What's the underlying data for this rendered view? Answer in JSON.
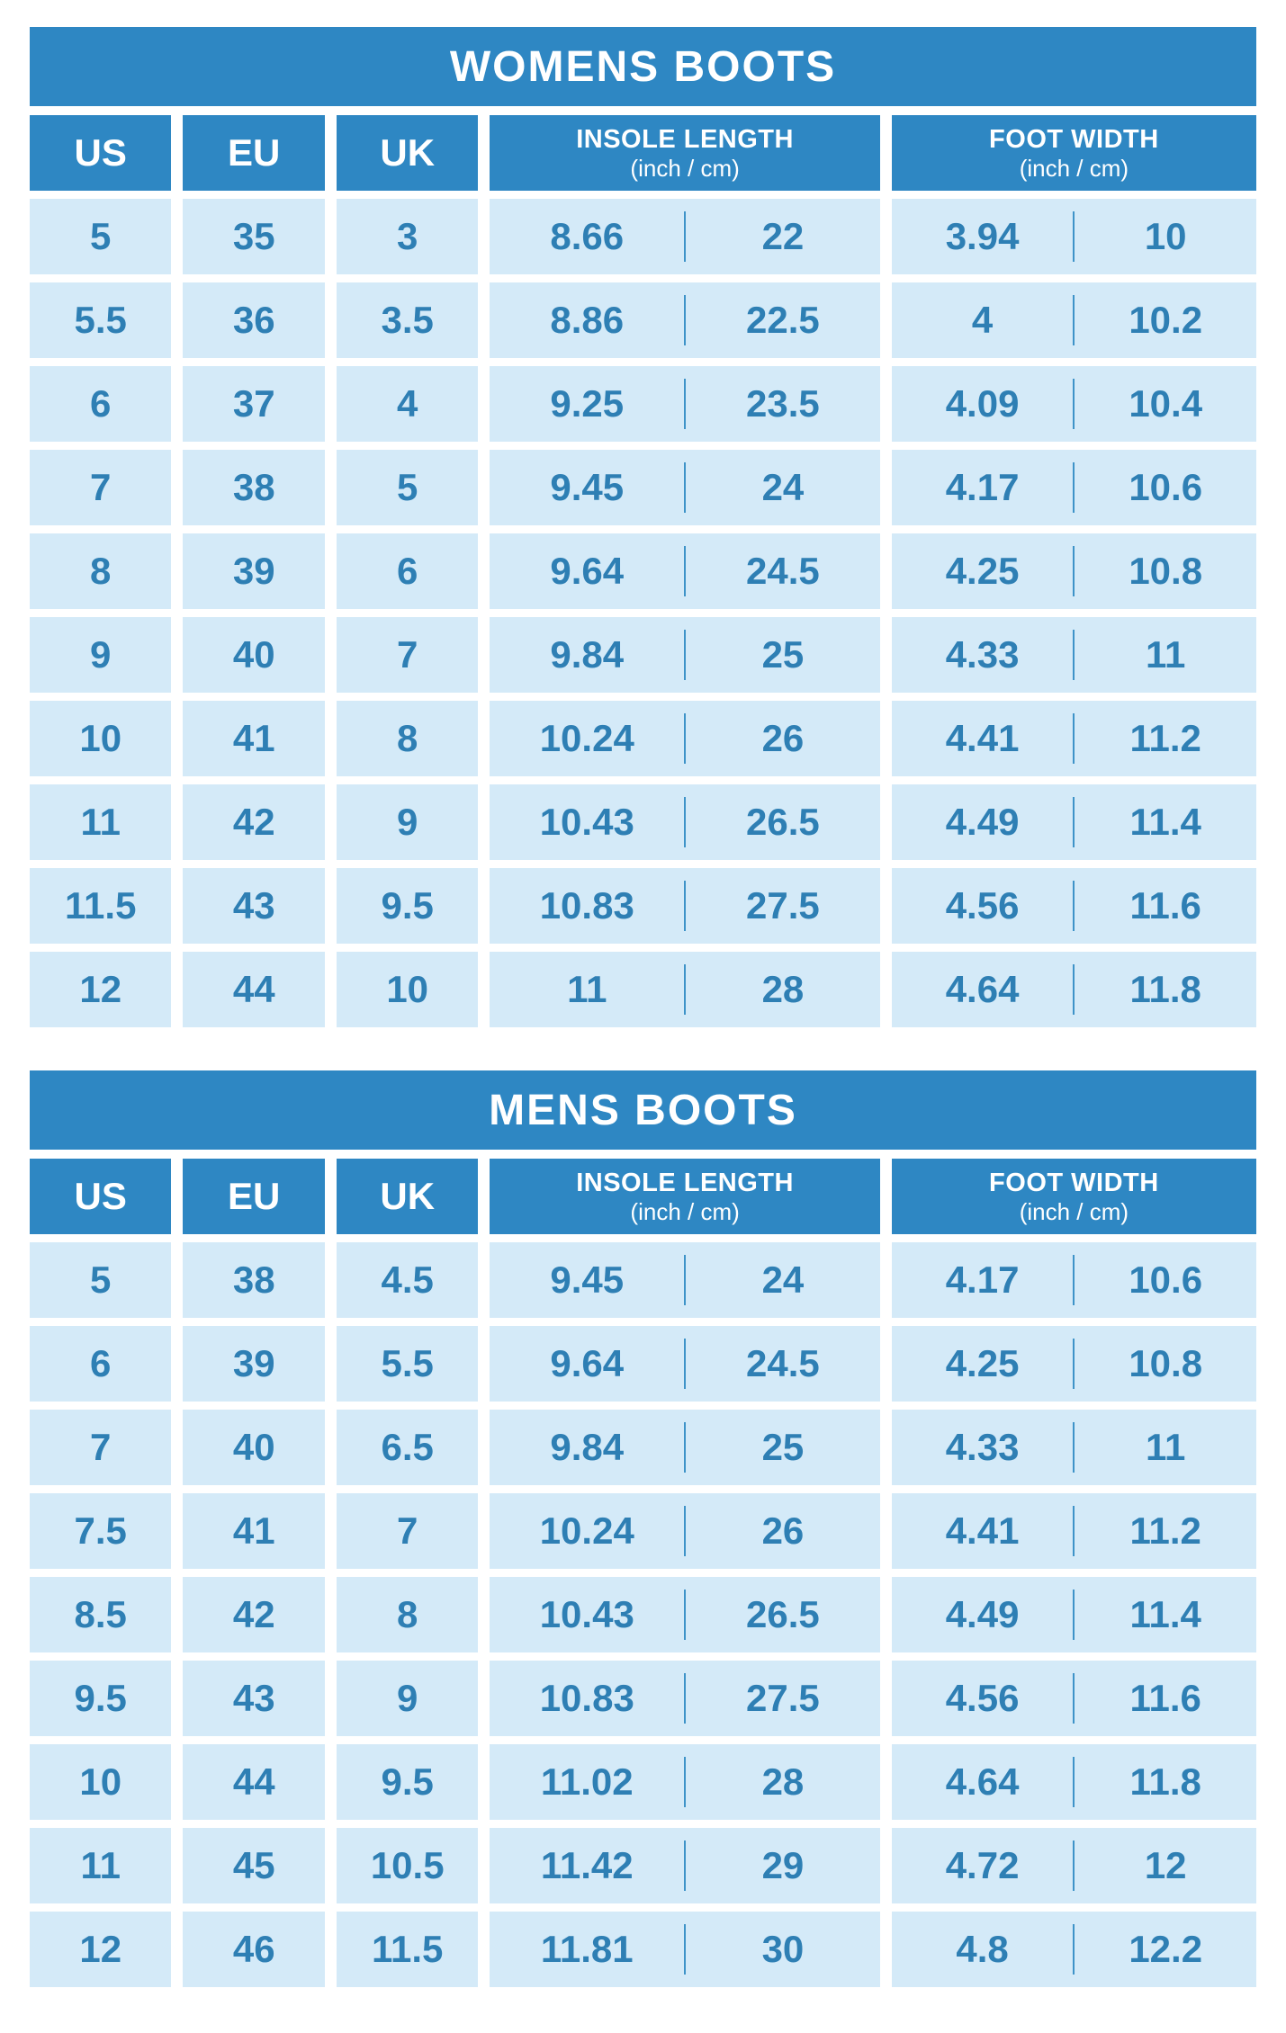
{
  "colors": {
    "page_bg": "#FFFFFF",
    "header_bg": "#2E87C3",
    "header_text": "#FFFFFF",
    "cell_bg": "#D4EAF8",
    "cell_text": "#2E7FB4",
    "divider": "#3E93C8"
  },
  "chart_data": [
    {
      "type": "table",
      "title": "WOMENS BOOTS",
      "header": {
        "us": "US",
        "eu": "EU",
        "uk": "UK",
        "insole": "INSOLE LENGTH",
        "foot": "FOOT WIDTH",
        "unit": "(inch / cm)"
      },
      "columns": [
        "US",
        "EU",
        "UK",
        "INSOLE LENGTH (inch)",
        "INSOLE LENGTH (cm)",
        "FOOT WIDTH (inch)",
        "FOOT WIDTH (cm)"
      ],
      "rows": [
        [
          "5",
          "35",
          "3",
          "8.66",
          "22",
          "3.94",
          "10"
        ],
        [
          "5.5",
          "36",
          "3.5",
          "8.86",
          "22.5",
          "4",
          "10.2"
        ],
        [
          "6",
          "37",
          "4",
          "9.25",
          "23.5",
          "4.09",
          "10.4"
        ],
        [
          "7",
          "38",
          "5",
          "9.45",
          "24",
          "4.17",
          "10.6"
        ],
        [
          "8",
          "39",
          "6",
          "9.64",
          "24.5",
          "4.25",
          "10.8"
        ],
        [
          "9",
          "40",
          "7",
          "9.84",
          "25",
          "4.33",
          "11"
        ],
        [
          "10",
          "41",
          "8",
          "10.24",
          "26",
          "4.41",
          "11.2"
        ],
        [
          "11",
          "42",
          "9",
          "10.43",
          "26.5",
          "4.49",
          "11.4"
        ],
        [
          "11.5",
          "43",
          "9.5",
          "10.83",
          "27.5",
          "4.56",
          "11.6"
        ],
        [
          "12",
          "44",
          "10",
          "11",
          "28",
          "4.64",
          "11.8"
        ]
      ]
    },
    {
      "type": "table",
      "title": "MENS BOOTS",
      "header": {
        "us": "US",
        "eu": "EU",
        "uk": "UK",
        "insole": "INSOLE LENGTH",
        "foot": "FOOT WIDTH",
        "unit": "(inch / cm)"
      },
      "columns": [
        "US",
        "EU",
        "UK",
        "INSOLE LENGTH (inch)",
        "INSOLE LENGTH (cm)",
        "FOOT WIDTH (inch)",
        "FOOT WIDTH (cm)"
      ],
      "rows": [
        [
          "5",
          "38",
          "4.5",
          "9.45",
          "24",
          "4.17",
          "10.6"
        ],
        [
          "6",
          "39",
          "5.5",
          "9.64",
          "24.5",
          "4.25",
          "10.8"
        ],
        [
          "7",
          "40",
          "6.5",
          "9.84",
          "25",
          "4.33",
          "11"
        ],
        [
          "7.5",
          "41",
          "7",
          "10.24",
          "26",
          "4.41",
          "11.2"
        ],
        [
          "8.5",
          "42",
          "8",
          "10.43",
          "26.5",
          "4.49",
          "11.4"
        ],
        [
          "9.5",
          "43",
          "9",
          "10.83",
          "27.5",
          "4.56",
          "11.6"
        ],
        [
          "10",
          "44",
          "9.5",
          "11.02",
          "28",
          "4.64",
          "11.8"
        ],
        [
          "11",
          "45",
          "10.5",
          "11.42",
          "29",
          "4.72",
          "12"
        ],
        [
          "12",
          "46",
          "11.5",
          "11.81",
          "30",
          "4.8",
          "12.2"
        ]
      ]
    }
  ]
}
